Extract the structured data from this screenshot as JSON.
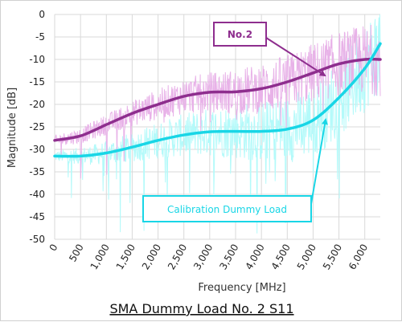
{
  "chart_data": {
    "type": "line",
    "title": "",
    "caption": "SMA Dummy Load No. 2 S11",
    "xlabel": "Frequency [MHz]",
    "ylabel": "Magnitude [dB]",
    "xlim": [
      0,
      6300
    ],
    "ylim": [
      -50,
      0
    ],
    "x_ticks": [
      0,
      500,
      1000,
      1500,
      2000,
      2500,
      3000,
      3500,
      4000,
      4500,
      5000,
      5500,
      6000
    ],
    "x_tick_labels": [
      "0",
      "500",
      "1,000",
      "1,500",
      "2,000",
      "2,500",
      "3,000",
      "3,500",
      "4,000",
      "4,500",
      "5,000",
      "5,500",
      "6,000"
    ],
    "y_ticks": [
      0,
      -5,
      -10,
      -15,
      -20,
      -25,
      -30,
      -35,
      -40,
      -45,
      -50
    ],
    "y_tick_labels": [
      "0",
      "-5",
      "-10",
      "-15",
      "-20",
      "-25",
      "-30",
      "-35",
      "-40",
      "-45",
      "-50"
    ],
    "grid": true,
    "series": [
      {
        "name": "No.2",
        "color": "#8e2e8e",
        "raw_color": "#e8b2e8",
        "x": [
          0,
          500,
          1000,
          1500,
          2000,
          2500,
          3000,
          3500,
          4000,
          4500,
          5000,
          5500,
          6000,
          6300
        ],
        "values": [
          -28,
          -27,
          -24.5,
          -22,
          -20,
          -18.2,
          -17.3,
          -17.2,
          -16.5,
          -15,
          -13,
          -11,
          -10,
          -10
        ]
      },
      {
        "name": "Calibration Dummy Load",
        "color": "#19d6e6",
        "raw_color": "#b4fafa",
        "x": [
          0,
          500,
          1000,
          1500,
          2000,
          2500,
          3000,
          3500,
          4000,
          4500,
          5000,
          5500,
          6000,
          6300
        ],
        "values": [
          -31.5,
          -31.5,
          -30.8,
          -29.5,
          -28,
          -26.8,
          -26.1,
          -26.0,
          -26.0,
          -25.5,
          -23.5,
          -18.5,
          -12,
          -6.5
        ]
      }
    ],
    "annotations": [
      "No.2",
      "Calibration Dummy Load"
    ]
  }
}
